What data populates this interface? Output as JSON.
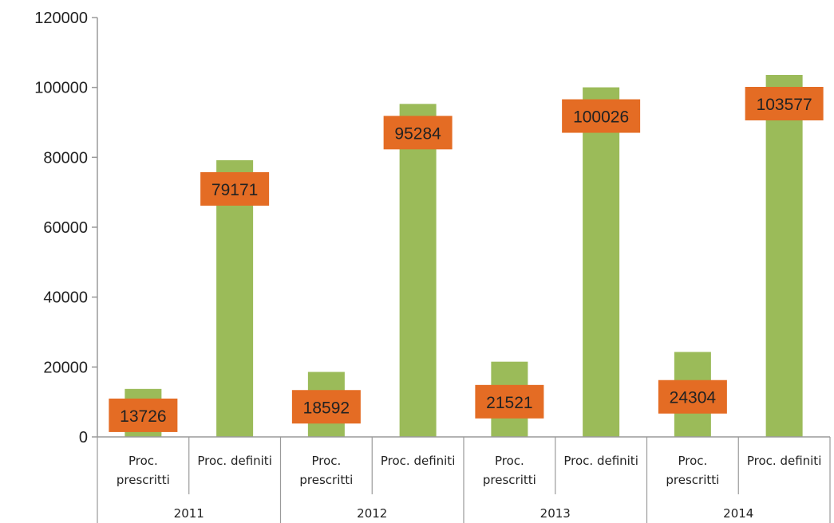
{
  "chart_data": {
    "type": "bar",
    "title": "",
    "xlabel": "",
    "ylabel": "",
    "ylim": [
      0,
      120000
    ],
    "yticks": [
      "0",
      "20000",
      "40000",
      "60000",
      "80000",
      "100000",
      "120000"
    ],
    "grid": false,
    "legend": "none",
    "groups": [
      "2011",
      "2012",
      "2013",
      "2014"
    ],
    "categories": [
      [
        "Proc.",
        "prescritti"
      ],
      [
        "Proc. definiti"
      ],
      [
        "Proc.",
        "prescritti"
      ],
      [
        "Proc. definiti"
      ],
      [
        "Proc.",
        "prescritti"
      ],
      [
        "Proc. definiti"
      ],
      [
        "Proc.",
        "prescritti"
      ],
      [
        "Proc. definiti"
      ]
    ],
    "values": [
      13726,
      79171,
      18592,
      95284,
      21521,
      100026,
      24304,
      103577
    ],
    "data_labels": [
      "13726",
      "79171",
      "18592",
      "95284",
      "21521",
      "100026",
      "24304",
      "103577"
    ],
    "colors": {
      "bar": "#9BBB59",
      "label_bg": "#E46C24",
      "axis": "#9a9a9a"
    }
  }
}
